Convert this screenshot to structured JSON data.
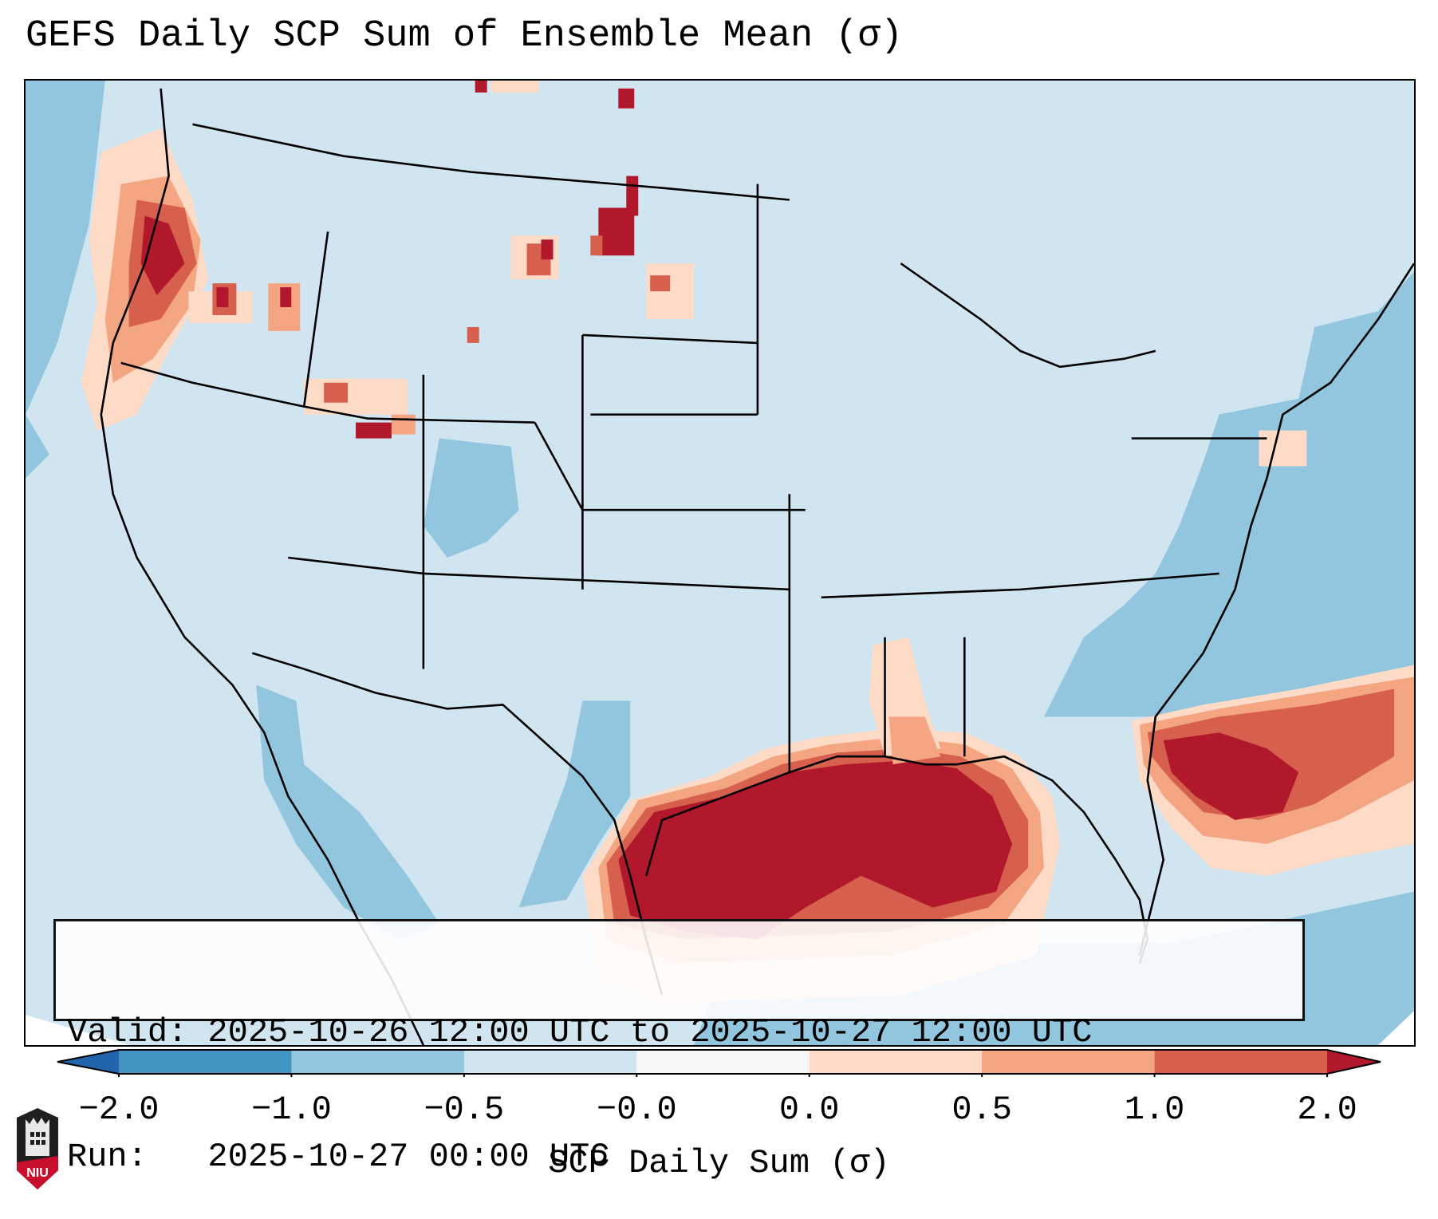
{
  "title": "GEFS Daily SCP Sum of Ensemble Mean (σ)",
  "info": {
    "valid_line": "Valid: 2025-10-26 12:00 UTC to 2025-10-27 12:00 UTC",
    "run_line": "Run:   2025-10-27 00:00 UTC"
  },
  "colorbar": {
    "label": "SCP Daily Sum (σ)",
    "ticks": [
      "-2.0",
      "-1.0",
      "-0.5",
      "-0.0",
      "0.0",
      "0.5",
      "1.0",
      "2.0"
    ],
    "bins": [
      {
        "range": "< -2.0",
        "color": "#2166ac"
      },
      {
        "range": "-2.0 to -1.0",
        "color": "#4393c3"
      },
      {
        "range": "-1.0 to -0.5",
        "color": "#92c5de"
      },
      {
        "range": "-0.5 to -0.0",
        "color": "#d1e5f0"
      },
      {
        "range": "-0.0 to 0.0",
        "color": "#f7f7f7"
      },
      {
        "range": "0.0 to 0.5",
        "color": "#fddbc7"
      },
      {
        "range": "0.5 to 1.0",
        "color": "#f4a582"
      },
      {
        "range": "1.0 to 2.0",
        "color": "#d6604d"
      },
      {
        "range": "> 2.0",
        "color": "#b2182b"
      }
    ],
    "extend": "both"
  },
  "map": {
    "region": "Contiguous United States",
    "background_color": "#d1e5f0",
    "ocean_color": "#92c5de",
    "features": [
      {
        "name": "Gulf of Mexico maximum",
        "level": "> 2.0"
      },
      {
        "name": "Florida / western Atlantic band",
        "level": "1.0 to 2.0"
      },
      {
        "name": "Pacific Northwest coast",
        "level": "0.5 to 2.0"
      },
      {
        "name": "Northern Plains spots",
        "level": "> 2.0"
      },
      {
        "name": "Atlantic and Pacific ocean negatives",
        "level": "-1.0 to -0.5"
      }
    ]
  },
  "logo": {
    "text": "NIU"
  }
}
